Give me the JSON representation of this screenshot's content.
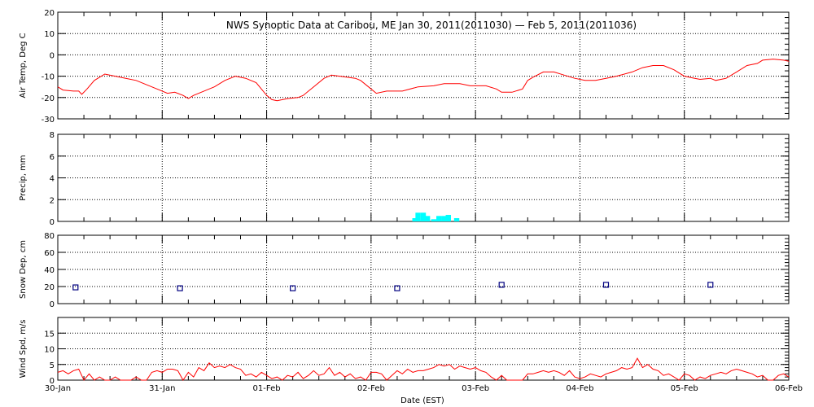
{
  "title": "NWS Synoptic Data at Caribou, ME    Jan 30, 2011(2011030) — Feb  5, 2011(2011036)",
  "xlabel": "Date (EST)",
  "x_tick_labels": [
    "30-Jan",
    "31-Jan",
    "01-Feb",
    "02-Feb",
    "03-Feb",
    "04-Feb",
    "05-Feb",
    "06-Feb"
  ],
  "colors": {
    "temp": "#ff0000",
    "precip": "#00ffff",
    "snow": "#000080",
    "wind": "#ff0000",
    "axis": "#000000"
  },
  "chart_data": [
    {
      "type": "line",
      "ylabel": "Air Temp, Deg C",
      "ylim": [
        -30,
        20
      ],
      "yticks": [
        -30,
        -20,
        -10,
        0,
        10,
        20
      ],
      "x_unit": "days since 30-Jan 00:00 EST",
      "grid": true,
      "series": [
        {
          "points": [
            [
              0,
              -15
            ],
            [
              0.05,
              -16.5
            ],
            [
              0.15,
              -17
            ],
            [
              0.2,
              -17
            ],
            [
              0.23,
              -18.5
            ],
            [
              0.28,
              -16
            ],
            [
              0.35,
              -12
            ],
            [
              0.45,
              -9
            ],
            [
              0.55,
              -10
            ],
            [
              0.65,
              -11
            ],
            [
              0.75,
              -12
            ],
            [
              0.85,
              -14
            ],
            [
              0.95,
              -16
            ],
            [
              1.05,
              -18
            ],
            [
              1.12,
              -17.5
            ],
            [
              1.2,
              -19
            ],
            [
              1.25,
              -20.5
            ],
            [
              1.3,
              -19
            ],
            [
              1.4,
              -17
            ],
            [
              1.5,
              -15
            ],
            [
              1.6,
              -12
            ],
            [
              1.7,
              -10
            ],
            [
              1.8,
              -11
            ],
            [
              1.9,
              -13
            ],
            [
              2.0,
              -19
            ],
            [
              2.05,
              -21
            ],
            [
              2.1,
              -21.5
            ],
            [
              2.2,
              -20.5
            ],
            [
              2.3,
              -20
            ],
            [
              2.35,
              -19
            ],
            [
              2.45,
              -15
            ],
            [
              2.55,
              -11
            ],
            [
              2.62,
              -9.5
            ],
            [
              2.7,
              -10
            ],
            [
              2.85,
              -11
            ],
            [
              2.9,
              -12
            ],
            [
              3.0,
              -16
            ],
            [
              3.05,
              -18
            ],
            [
              3.15,
              -17
            ],
            [
              3.3,
              -17
            ],
            [
              3.45,
              -15
            ],
            [
              3.6,
              -14.5
            ],
            [
              3.7,
              -13.5
            ],
            [
              3.85,
              -13.5
            ],
            [
              3.95,
              -14.5
            ],
            [
              4.1,
              -14.5
            ],
            [
              4.2,
              -16
            ],
            [
              4.25,
              -17.5
            ],
            [
              4.35,
              -17.5
            ],
            [
              4.45,
              -16
            ],
            [
              4.5,
              -12
            ],
            [
              4.55,
              -10.5
            ],
            [
              4.65,
              -8
            ],
            [
              4.75,
              -8
            ],
            [
              4.85,
              -9.5
            ],
            [
              4.95,
              -11
            ],
            [
              5.05,
              -12
            ],
            [
              5.15,
              -12
            ],
            [
              5.25,
              -11
            ],
            [
              5.35,
              -10
            ],
            [
              5.5,
              -8
            ],
            [
              5.6,
              -6
            ],
            [
              5.7,
              -5
            ],
            [
              5.8,
              -5
            ],
            [
              5.9,
              -7
            ],
            [
              6.0,
              -10
            ],
            [
              6.1,
              -11
            ],
            [
              6.15,
              -11.5
            ],
            [
              6.25,
              -11
            ],
            [
              6.3,
              -12
            ],
            [
              6.4,
              -11
            ],
            [
              6.5,
              -8
            ],
            [
              6.6,
              -5
            ],
            [
              6.7,
              -4
            ],
            [
              6.75,
              -2.5
            ],
            [
              6.85,
              -2
            ],
            [
              6.95,
              -2.5
            ],
            [
              7.0,
              -3
            ]
          ]
        }
      ]
    },
    {
      "type": "bar",
      "ylabel": "Precip, mm",
      "ylim": [
        0,
        8
      ],
      "yticks": [
        0,
        2,
        4,
        6,
        8
      ],
      "x_unit": "days since 30-Jan 00:00 EST",
      "grid": true,
      "bars": [
        [
          3.42,
          0.3
        ],
        [
          3.45,
          0.8
        ],
        [
          3.5,
          0.8
        ],
        [
          3.54,
          0.5
        ],
        [
          3.6,
          0.2
        ],
        [
          3.65,
          0.5
        ],
        [
          3.7,
          0.5
        ],
        [
          3.74,
          0.6
        ],
        [
          3.82,
          0.3
        ]
      ]
    },
    {
      "type": "scatter",
      "ylabel": "Snow Dep, cm",
      "ylim": [
        0,
        80
      ],
      "yticks": [
        0,
        20,
        40,
        60,
        80
      ],
      "x_unit": "days since 30-Jan 00:00 EST",
      "grid": true,
      "points": [
        [
          0.17,
          19
        ],
        [
          1.17,
          18
        ],
        [
          2.25,
          18
        ],
        [
          3.25,
          18
        ],
        [
          4.25,
          22
        ],
        [
          5.25,
          22
        ],
        [
          6.25,
          22
        ]
      ]
    },
    {
      "type": "line",
      "ylabel": "Wind Spd, m/s",
      "ylim": [
        0,
        20
      ],
      "yticks": [
        0,
        5,
        10,
        15
      ],
      "x_unit": "days since 30-Jan 00:00 EST",
      "grid": true,
      "series": [
        {
          "points": [
            [
              0,
              2.5
            ],
            [
              0.05,
              3
            ],
            [
              0.1,
              2
            ],
            [
              0.15,
              3
            ],
            [
              0.2,
              3.5
            ],
            [
              0.25,
              0
            ],
            [
              0.3,
              2
            ],
            [
              0.35,
              0
            ],
            [
              0.4,
              1
            ],
            [
              0.45,
              0
            ],
            [
              0.5,
              0
            ],
            [
              0.55,
              1
            ],
            [
              0.6,
              0
            ],
            [
              0.65,
              0
            ],
            [
              0.7,
              0
            ],
            [
              0.75,
              1
            ],
            [
              0.8,
              0
            ],
            [
              0.85,
              0
            ],
            [
              0.9,
              2.5
            ],
            [
              0.95,
              3
            ],
            [
              1.0,
              2.5
            ],
            [
              1.05,
              3.5
            ],
            [
              1.1,
              3.5
            ],
            [
              1.15,
              3
            ],
            [
              1.2,
              0
            ],
            [
              1.25,
              2.5
            ],
            [
              1.3,
              1
            ],
            [
              1.35,
              4
            ],
            [
              1.4,
              3
            ],
            [
              1.45,
              5.5
            ],
            [
              1.5,
              4
            ],
            [
              1.55,
              4.5
            ],
            [
              1.6,
              4
            ],
            [
              1.65,
              5
            ],
            [
              1.7,
              4
            ],
            [
              1.75,
              3.5
            ],
            [
              1.8,
              1.5
            ],
            [
              1.85,
              2
            ],
            [
              1.9,
              1
            ],
            [
              1.95,
              2.5
            ],
            [
              2.0,
              1.5
            ],
            [
              2.05,
              0.5
            ],
            [
              2.1,
              1
            ],
            [
              2.15,
              0
            ],
            [
              2.2,
              1.5
            ],
            [
              2.25,
              1
            ],
            [
              2.3,
              2.5
            ],
            [
              2.35,
              0.5
            ],
            [
              2.4,
              1.5
            ],
            [
              2.45,
              3
            ],
            [
              2.5,
              1.5
            ],
            [
              2.55,
              2
            ],
            [
              2.6,
              4
            ],
            [
              2.65,
              1.5
            ],
            [
              2.7,
              2.5
            ],
            [
              2.75,
              1
            ],
            [
              2.8,
              2
            ],
            [
              2.85,
              0.5
            ],
            [
              2.9,
              1
            ],
            [
              2.95,
              0
            ],
            [
              3.0,
              2.5
            ],
            [
              3.05,
              2.5
            ],
            [
              3.1,
              2
            ],
            [
              3.15,
              0
            ],
            [
              3.2,
              1.5
            ],
            [
              3.25,
              3
            ],
            [
              3.3,
              2
            ],
            [
              3.35,
              3.5
            ],
            [
              3.4,
              2.5
            ],
            [
              3.45,
              3
            ],
            [
              3.5,
              3
            ],
            [
              3.55,
              3.5
            ],
            [
              3.6,
              4
            ],
            [
              3.65,
              5
            ],
            [
              3.7,
              4.5
            ],
            [
              3.75,
              5
            ],
            [
              3.8,
              3.5
            ],
            [
              3.85,
              4.5
            ],
            [
              3.9,
              4
            ],
            [
              3.95,
              3.5
            ],
            [
              4.0,
              4
            ],
            [
              4.05,
              3
            ],
            [
              4.1,
              2.5
            ],
            [
              4.15,
              1
            ],
            [
              4.2,
              0
            ],
            [
              4.25,
              1.5
            ],
            [
              4.3,
              0
            ],
            [
              4.35,
              0
            ],
            [
              4.4,
              0
            ],
            [
              4.45,
              0
            ],
            [
              4.5,
              2
            ],
            [
              4.55,
              2
            ],
            [
              4.6,
              2.5
            ],
            [
              4.65,
              3
            ],
            [
              4.7,
              2.5
            ],
            [
              4.75,
              3
            ],
            [
              4.8,
              2.5
            ],
            [
              4.85,
              1.5
            ],
            [
              4.9,
              3
            ],
            [
              4.95,
              1
            ],
            [
              5.0,
              0.5
            ],
            [
              5.05,
              1
            ],
            [
              5.1,
              2
            ],
            [
              5.15,
              1.5
            ],
            [
              5.2,
              1
            ],
            [
              5.25,
              2
            ],
            [
              5.3,
              2.5
            ],
            [
              5.35,
              3
            ],
            [
              5.4,
              4
            ],
            [
              5.45,
              3.5
            ],
            [
              5.5,
              4
            ],
            [
              5.55,
              7
            ],
            [
              5.6,
              4
            ],
            [
              5.65,
              5
            ],
            [
              5.7,
              3.5
            ],
            [
              5.75,
              3
            ],
            [
              5.8,
              1.5
            ],
            [
              5.85,
              2
            ],
            [
              5.9,
              1
            ],
            [
              5.95,
              0
            ],
            [
              6.0,
              2
            ],
            [
              6.05,
              1.5
            ],
            [
              6.1,
              0
            ],
            [
              6.15,
              1
            ],
            [
              6.2,
              0.5
            ],
            [
              6.25,
              1.5
            ],
            [
              6.3,
              2
            ],
            [
              6.35,
              2.5
            ],
            [
              6.4,
              2
            ],
            [
              6.45,
              3
            ],
            [
              6.5,
              3.5
            ],
            [
              6.55,
              3
            ],
            [
              6.6,
              2.5
            ],
            [
              6.65,
              2
            ],
            [
              6.7,
              1
            ],
            [
              6.75,
              1.5
            ],
            [
              6.8,
              0
            ],
            [
              6.85,
              0
            ],
            [
              6.9,
              1.5
            ],
            [
              6.95,
              2
            ],
            [
              7.0,
              1
            ]
          ]
        }
      ]
    }
  ]
}
